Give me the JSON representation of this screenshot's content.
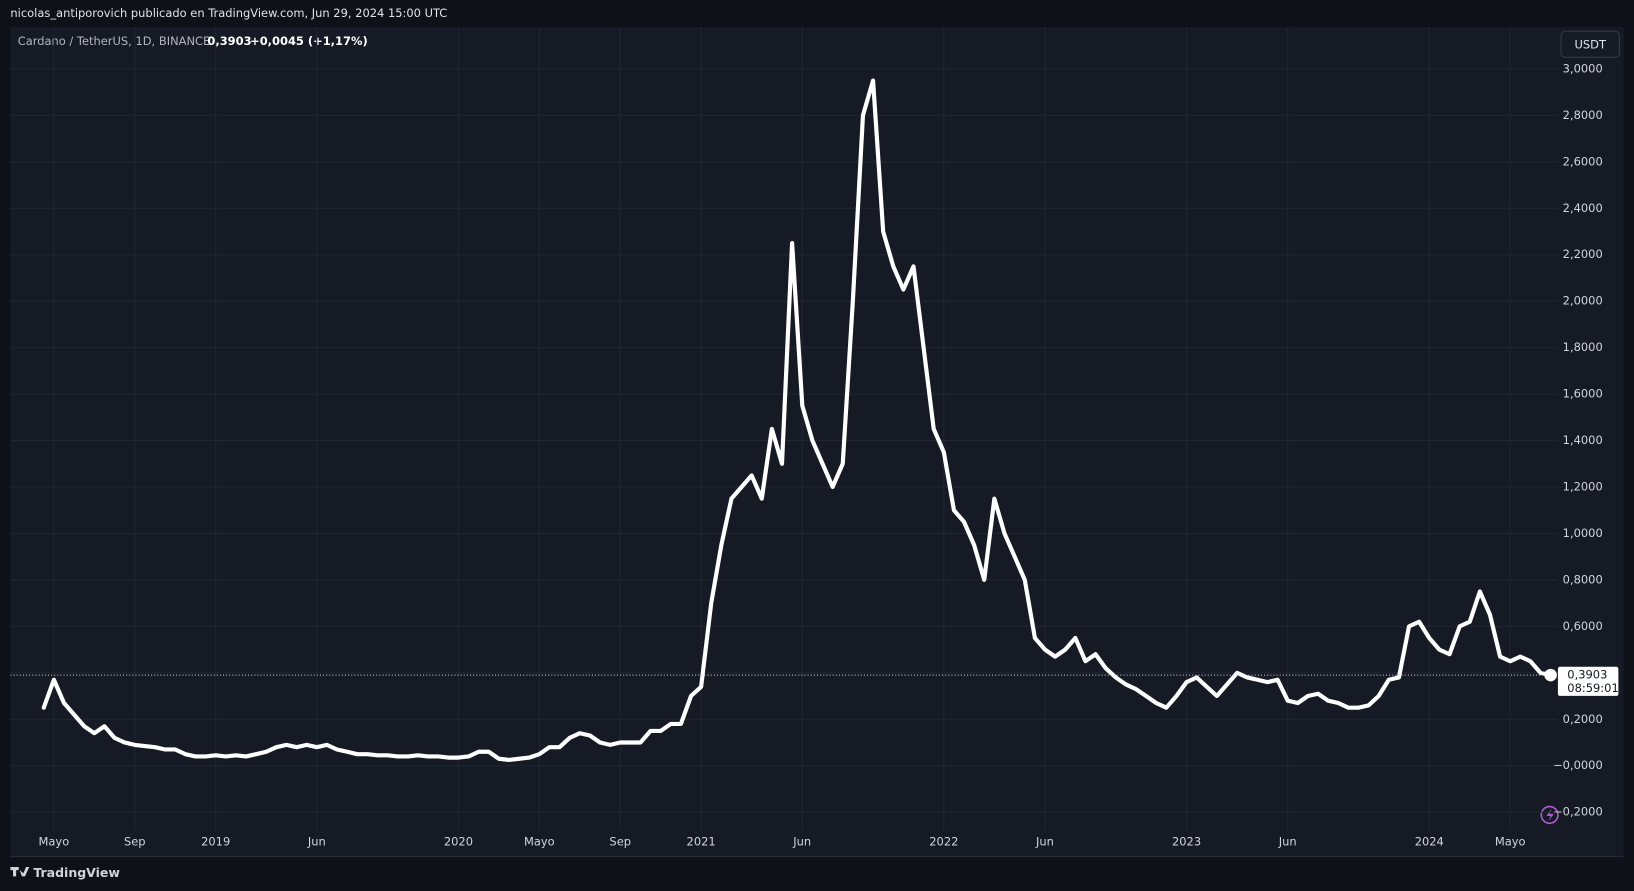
{
  "header": "nicolas_antiporovich publicado en TradingView.com, Jun 29, 2024 15:00 UTC",
  "footer_brand": "TradingView",
  "chart_data": {
    "type": "line",
    "symbol": "Cardano / TetherUS, 1D, BINANCE",
    "last_price": "0,3903",
    "change": "+0,0045 (+1,17%)",
    "currency": "USDT",
    "countdown": "08:59:01",
    "categories": [
      null,
      "Mayo",
      null,
      null,
      null,
      null,
      null,
      null,
      null,
      "Sep",
      null,
      null,
      null,
      null,
      null,
      null,
      null,
      "2019",
      null,
      null,
      null,
      null,
      null,
      null,
      null,
      null,
      null,
      "Jun",
      null,
      null,
      null,
      null,
      null,
      null,
      null,
      null,
      null,
      null,
      null,
      null,
      null,
      "2020",
      null,
      null,
      null,
      null,
      null,
      null,
      null,
      "Mayo",
      null,
      null,
      null,
      null,
      null,
      null,
      null,
      "Sep",
      null,
      null,
      null,
      null,
      null,
      null,
      null,
      "2021",
      null,
      null,
      null,
      null,
      null,
      null,
      null,
      null,
      null,
      "Jun",
      null,
      null,
      null,
      null,
      null,
      null,
      null,
      null,
      null,
      null,
      null,
      null,
      null,
      "2022",
      null,
      null,
      null,
      null,
      null,
      null,
      null,
      null,
      null,
      "Jun",
      null,
      null,
      null,
      null,
      null,
      null,
      null,
      null,
      null,
      null,
      null,
      null,
      null,
      "2023",
      null,
      null,
      null,
      null,
      null,
      null,
      null,
      null,
      null,
      "Jun",
      null,
      null,
      null,
      null,
      null,
      null,
      null,
      null,
      null,
      null,
      null,
      null,
      null,
      "2024",
      null,
      null,
      null,
      null,
      null,
      null,
      null,
      "Mayo",
      null,
      null,
      null,
      null
    ],
    "series": [
      {
        "color": "#ffffff",
        "values": [
          0.25,
          0.37,
          0.27,
          0.22,
          0.17,
          0.14,
          0.17,
          0.12,
          0.1,
          0.09,
          0.085,
          0.08,
          0.07,
          0.07,
          0.05,
          0.04,
          0.04,
          0.045,
          0.04,
          0.045,
          0.04,
          0.05,
          0.06,
          0.08,
          0.09,
          0.08,
          0.09,
          0.08,
          0.09,
          0.07,
          0.06,
          0.05,
          0.05,
          0.045,
          0.045,
          0.04,
          0.04,
          0.045,
          0.04,
          0.04,
          0.035,
          0.035,
          0.04,
          0.06,
          0.06,
          0.03,
          0.025,
          0.03,
          0.035,
          0.05,
          0.08,
          0.08,
          0.12,
          0.14,
          0.13,
          0.1,
          0.09,
          0.1,
          0.1,
          0.1,
          0.15,
          0.15,
          0.18,
          0.18,
          0.3,
          0.34,
          0.7,
          0.95,
          1.15,
          1.2,
          1.25,
          1.15,
          1.45,
          1.3,
          2.25,
          1.55,
          1.4,
          1.3,
          1.2,
          1.3,
          2.0,
          2.8,
          2.95,
          2.3,
          2.15,
          2.05,
          2.15,
          1.8,
          1.45,
          1.35,
          1.1,
          1.05,
          0.95,
          0.8,
          1.15,
          1.0,
          0.9,
          0.8,
          0.55,
          0.5,
          0.47,
          0.5,
          0.55,
          0.45,
          0.48,
          0.42,
          0.38,
          0.35,
          0.33,
          0.3,
          0.27,
          0.25,
          0.3,
          0.36,
          0.38,
          0.34,
          0.3,
          0.35,
          0.4,
          0.38,
          0.37,
          0.36,
          0.37,
          0.28,
          0.27,
          0.3,
          0.31,
          0.28,
          0.27,
          0.25,
          0.25,
          0.26,
          0.3,
          0.37,
          0.38,
          0.6,
          0.62,
          0.55,
          0.5,
          0.48,
          0.6,
          0.62,
          0.75,
          0.65,
          0.47,
          0.45,
          0.47,
          0.45,
          0.4,
          0.3903
        ]
      }
    ],
    "ylim": [
      -0.27,
      3.18
    ],
    "yticks": [
      {
        "value": -0.2,
        "label": "−0,2000"
      },
      {
        "value": 0,
        "label": "−0,0000"
      },
      {
        "value": 0.2,
        "label": "0,2000"
      },
      {
        "value": 0.4,
        "label": "0,4000"
      },
      {
        "value": 0.6,
        "label": "0,6000"
      },
      {
        "value": 0.8,
        "label": "0,8000"
      },
      {
        "value": 1.0,
        "label": "1,0000"
      },
      {
        "value": 1.2,
        "label": "1,2000"
      },
      {
        "value": 1.4,
        "label": "1,4000"
      },
      {
        "value": 1.6,
        "label": "1,6000"
      },
      {
        "value": 1.8,
        "label": "1,8000"
      },
      {
        "value": 2.0,
        "label": "2,0000"
      },
      {
        "value": 2.2,
        "label": "2,2000"
      },
      {
        "value": 2.4,
        "label": "2,4000"
      },
      {
        "value": 2.6,
        "label": "2,6000"
      },
      {
        "value": 2.8,
        "label": "2,8000"
      },
      {
        "value": 3.0,
        "label": "3,0000"
      }
    ],
    "grid": true,
    "last_price_line": true
  }
}
